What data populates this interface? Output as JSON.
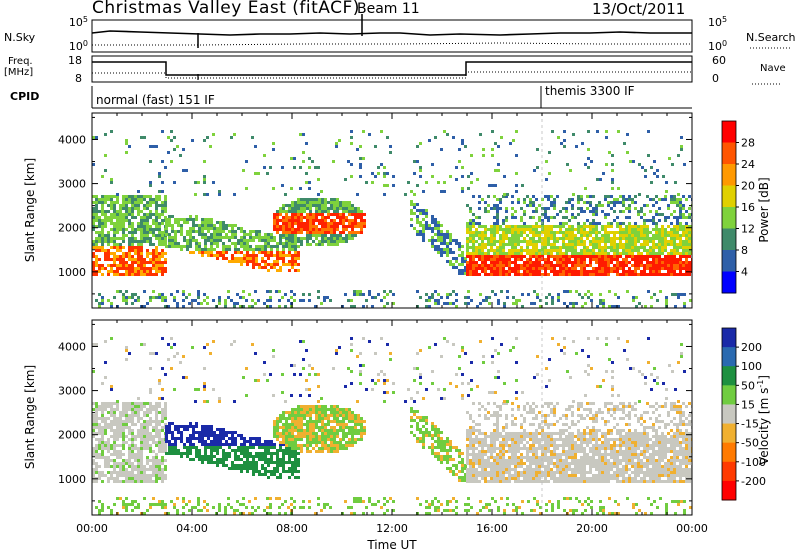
{
  "header": {
    "station": "Christmas Valley East (fitACF)",
    "beam": "Beam 11",
    "date": "13/Oct/2011"
  },
  "status_panels": {
    "nsky_label": "N.Sky",
    "nsearch_label": "N.Search",
    "noise_ticks": [
      "10^5",
      "10^0"
    ],
    "freq_label_1": "Freq.",
    "freq_label_2": "[MHz]",
    "freq_ticks": [
      "18",
      "8"
    ],
    "nave_label": "Nave",
    "nave_ticks": [
      "60",
      "0"
    ],
    "cpid_label": "CPID",
    "cpid_modes": [
      "normal (fast) 151 IF",
      "themis 3300 IF"
    ]
  },
  "chart_data": [
    {
      "type": "heatmap",
      "title": "",
      "xlabel": "",
      "ylabel": "Slant Range [km]",
      "x_ticks": [
        "00:00",
        "04:00",
        "08:00",
        "12:00",
        "16:00",
        "20:00",
        "00:00"
      ],
      "y_ticks": [
        "1000",
        "2000",
        "3000",
        "4000"
      ],
      "ylim": [
        180,
        4600
      ],
      "colorbar": {
        "label": "Power [dB]",
        "ticks": [
          "4",
          "8",
          "12",
          "16",
          "20",
          "24",
          "28"
        ],
        "colors": [
          "#0000ff",
          "#2e5fa8",
          "#3f8a6a",
          "#7fd23c",
          "#e0d000",
          "#ff9900",
          "#ff5500",
          "#ff0000"
        ]
      }
    },
    {
      "type": "heatmap",
      "title": "",
      "xlabel": "Time UT",
      "ylabel": "Slant Range [km]",
      "x_ticks": [
        "00:00",
        "04:00",
        "08:00",
        "12:00",
        "16:00",
        "20:00",
        "00:00"
      ],
      "y_ticks": [
        "1000",
        "2000",
        "3000",
        "4000"
      ],
      "ylim": [
        180,
        4600
      ],
      "colorbar": {
        "label": "Velocity [m s^-1]",
        "ticks": [
          "200",
          "100",
          "50",
          "15",
          "-15",
          "-50",
          "-100",
          "-200"
        ],
        "colors": [
          "#1a2aa8",
          "#2a6ab0",
          "#1e9040",
          "#70cc40",
          "#c8c8c0",
          "#f0b030",
          "#ff7a00",
          "#ff3a00",
          "#ff0000"
        ]
      }
    }
  ]
}
